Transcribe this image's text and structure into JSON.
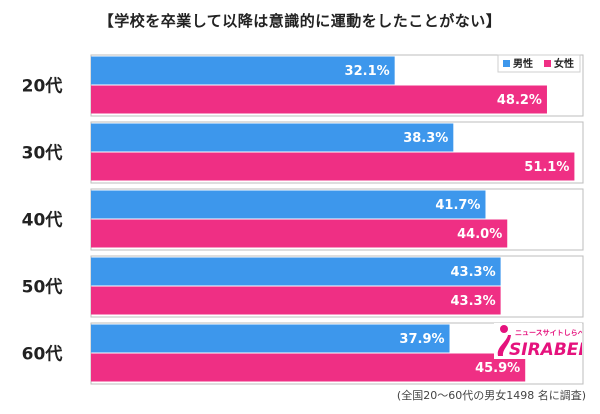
{
  "chart_data": {
    "type": "bar",
    "orientation": "horizontal",
    "title": "【学校を卒業して以降は意識的に運動をしたことがない】",
    "categories": [
      "20代",
      "30代",
      "40代",
      "50代",
      "60代"
    ],
    "series": [
      {
        "name": "男性",
        "color": "#3d97ec",
        "values": [
          32.1,
          38.3,
          41.7,
          43.3,
          37.9
        ]
      },
      {
        "name": "女性",
        "color": "#ef2f84",
        "values": [
          48.2,
          51.1,
          44.0,
          43.3,
          45.9
        ]
      }
    ],
    "value_suffix": "%",
    "xlim": [
      0,
      55
    ],
    "legend_position": "top-right",
    "grid": false
  },
  "note": "(全国20～60代の男女1498 名に調査)",
  "logo": {
    "text": "SIRABEE",
    "subtext": "ニュースサイトしらべぇ",
    "color": "#e5127d"
  }
}
